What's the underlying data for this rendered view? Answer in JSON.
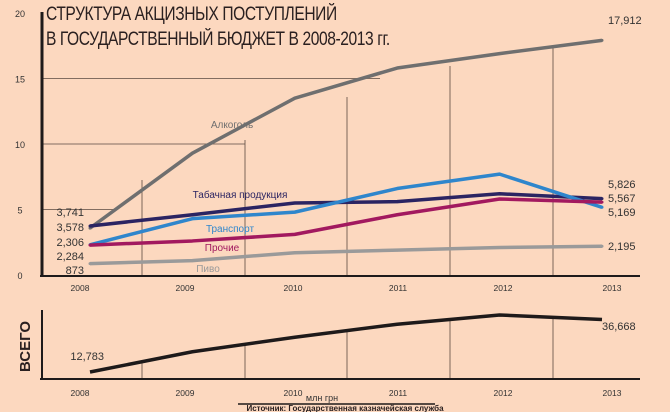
{
  "chart_data": [
    {
      "type": "line",
      "title": "СТРУКТУРА АКЦИЗНЫХ ПОСТУПЛЕНИЙ",
      "subtitle": "В ГОСУДАРСТВЕННЫЙ БЮДЖЕТ В 2008-2013 гг.",
      "x": [
        "2008",
        "2009",
        "2010",
        "2011",
        "2012",
        "2013"
      ],
      "yticks": [
        0,
        5,
        10,
        15,
        20
      ],
      "ylim": [
        0,
        20
      ],
      "series": [
        {
          "name": "Алкоголь",
          "color": "#6f6f6f",
          "values": [
            3.578,
            9.3,
            13.5,
            15.8,
            16.9,
            17.912
          ],
          "start_label": "3,578",
          "end_label": "17,912"
        },
        {
          "name": "Табачная продукция",
          "color": "#2b2462",
          "values": [
            3.741,
            4.6,
            5.5,
            5.6,
            6.2,
            5.826
          ],
          "start_label": "3,741",
          "end_label": "5,826"
        },
        {
          "name": "Транспорт",
          "color": "#2f86cc",
          "values": [
            2.306,
            4.3,
            4.8,
            6.6,
            7.7,
            5.169
          ],
          "start_label": "2,306",
          "end_label": "5,169"
        },
        {
          "name": "Прочие",
          "color": "#a2195f",
          "values": [
            2.284,
            2.6,
            3.1,
            4.6,
            5.8,
            5.567
          ],
          "start_label": "2,284",
          "end_label": "5,567"
        },
        {
          "name": "Пиво",
          "color": "#9a9a9a",
          "values": [
            0.873,
            1.1,
            1.7,
            1.9,
            2.1,
            2.195
          ],
          "start_label": "873",
          "end_label": "2,195"
        }
      ]
    },
    {
      "type": "line",
      "ylabel": "ВСЕГО",
      "x": [
        "2008",
        "2009",
        "2010",
        "2011",
        "2012",
        "2013"
      ],
      "xlabel": "млн грн",
      "series": [
        {
          "name": "ВСЕГО",
          "color": "#1e1a1a",
          "values": [
            12.783,
            22.0,
            28.6,
            34.5,
            38.7,
            36.668
          ],
          "start_label": "12,783",
          "end_label": "36,668"
        }
      ]
    }
  ],
  "source": "Источник: Государственная казначейская служба"
}
